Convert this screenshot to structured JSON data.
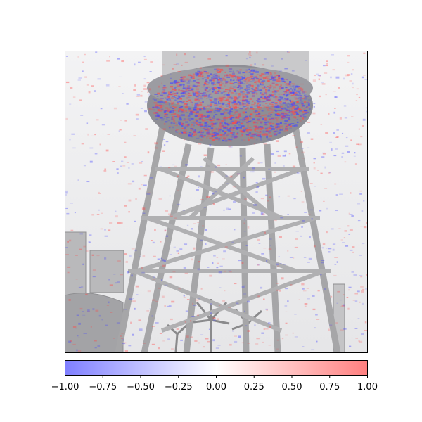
{
  "chart_data": {
    "type": "heatmap",
    "description_free": true,
    "title": "",
    "xlabel": "",
    "ylabel": "",
    "axes": {
      "show_ticks": false,
      "grid": false
    },
    "colormap": "bwr",
    "vmin": -1.0,
    "vmax": 1.0,
    "colorbar": {
      "orientation": "horizontal",
      "placement": "bottom",
      "ticks": [
        -1.0,
        -0.75,
        -0.5,
        -0.25,
        0.0,
        0.25,
        0.5,
        0.75,
        1.0
      ],
      "tick_labels": [
        "−1.00",
        "−0.75",
        "−0.50",
        "−0.25",
        "0.00",
        "0.25",
        "0.50",
        "0.75",
        "1.00"
      ],
      "colors": {
        "low": "#7f7fff",
        "mid": "#ffffff",
        "high": "#ff7f7f"
      }
    }
  }
}
